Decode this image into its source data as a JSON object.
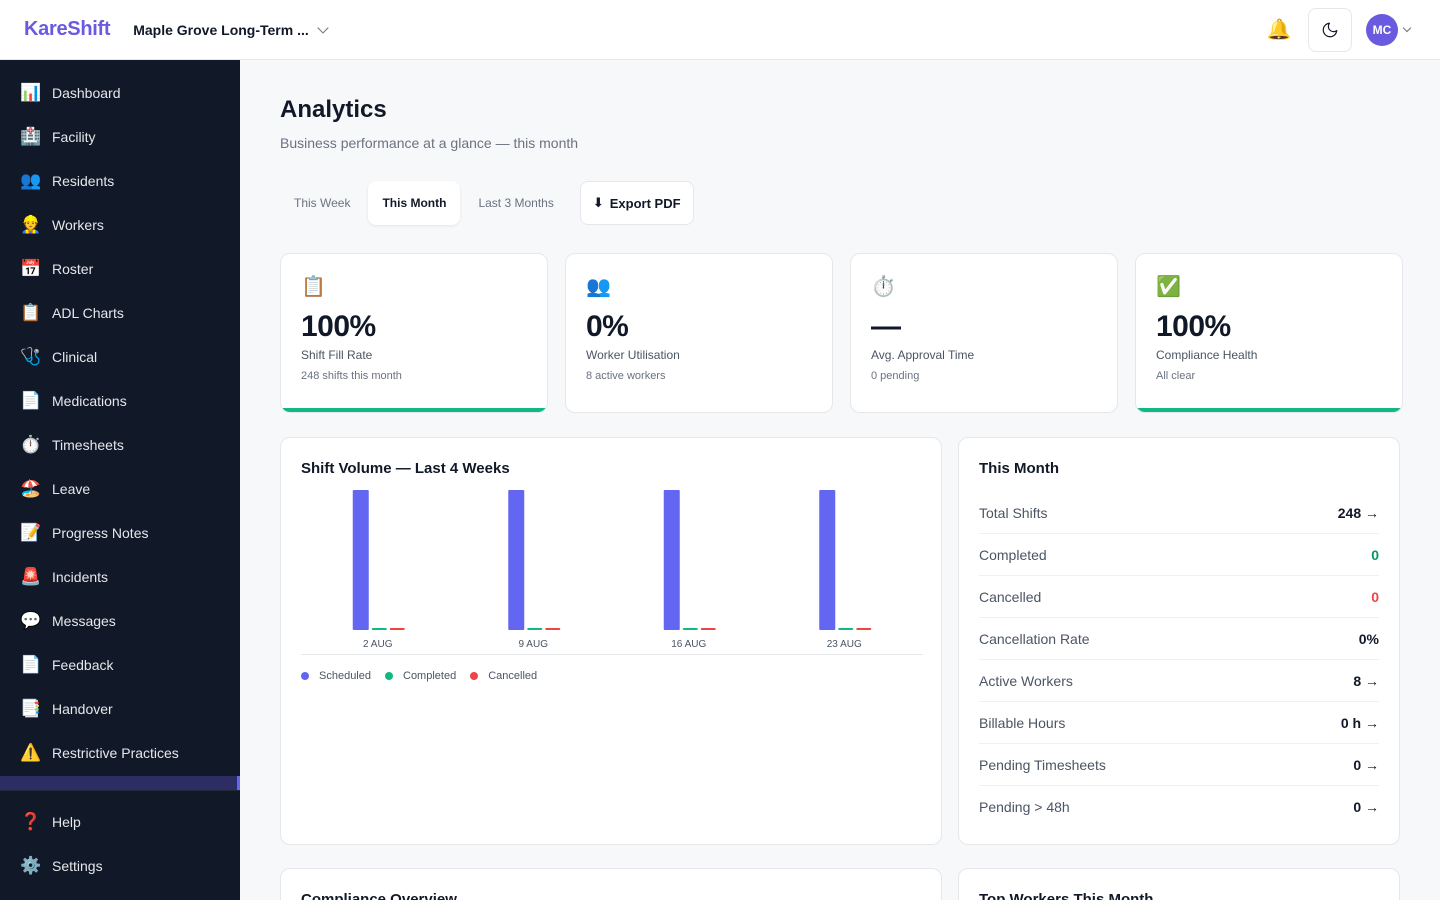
{
  "header": {
    "logo": "KareShift",
    "facility": "Maple Grove Long-Term ...",
    "bell_icon": "🔔",
    "avatar_initials": "MC"
  },
  "sidebar": {
    "items": [
      {
        "icon": "📊",
        "label": "Dashboard"
      },
      {
        "icon": "🏥",
        "label": "Facility"
      },
      {
        "icon": "👥",
        "label": "Residents"
      },
      {
        "icon": "👷",
        "label": "Workers"
      },
      {
        "icon": "📅",
        "label": "Roster"
      },
      {
        "icon": "📋",
        "label": "ADL Charts"
      },
      {
        "icon": "🩺",
        "label": "Clinical"
      },
      {
        "icon": "📄",
        "label": "Medications"
      },
      {
        "icon": "⏱️",
        "label": "Timesheets"
      },
      {
        "icon": "🏖️",
        "label": "Leave"
      },
      {
        "icon": "📝",
        "label": "Progress Notes"
      },
      {
        "icon": "🚨",
        "label": "Incidents"
      },
      {
        "icon": "💬",
        "label": "Messages"
      },
      {
        "icon": "📄",
        "label": "Feedback"
      },
      {
        "icon": "📑",
        "label": "Handover"
      },
      {
        "icon": "⚠️",
        "label": "Restrictive Practices"
      }
    ],
    "bottom": [
      {
        "icon": "❓",
        "label": "Help"
      },
      {
        "icon": "⚙️",
        "label": "Settings"
      }
    ]
  },
  "page": {
    "title": "Analytics",
    "subtitle": "Business performance at a glance — this month"
  },
  "tabs": [
    {
      "label": "This Week",
      "active": false
    },
    {
      "label": "This Month",
      "active": true
    },
    {
      "label": "Last 3 Months",
      "active": false
    }
  ],
  "export_label": "Export PDF",
  "export_icon": "⬇",
  "kpis": [
    {
      "icon": "📋",
      "value": "100%",
      "label": "Shift Fill Rate",
      "sub": "248 shifts this month",
      "bar": 1.0
    },
    {
      "icon": "👥",
      "value": "0%",
      "label": "Worker Utilisation",
      "sub": "8 active workers",
      "bar": 0
    },
    {
      "icon": "⏱️",
      "value": "—",
      "label": "Avg. Approval Time",
      "sub": "0 pending",
      "bar": 0
    },
    {
      "icon": "✅",
      "value": "100%",
      "label": "Compliance Health",
      "sub": "All clear",
      "bar": 1.0
    }
  ],
  "chart_title": "Shift Volume — Last 4 Weeks",
  "chart_data": {
    "type": "bar",
    "categories": [
      "2 AUG",
      "9 AUG",
      "16 AUG",
      "23 AUG"
    ],
    "series": [
      {
        "name": "Scheduled",
        "color": "#6366f1",
        "values": [
          62,
          62,
          62,
          62
        ]
      },
      {
        "name": "Completed",
        "color": "#10b981",
        "values": [
          0,
          0,
          0,
          0
        ]
      },
      {
        "name": "Cancelled",
        "color": "#ef4444",
        "values": [
          0,
          0,
          0,
          0
        ]
      }
    ],
    "ylim": [
      0,
      62
    ],
    "legend": "bottom-left",
    "grid": false
  },
  "month": {
    "title": "This Month",
    "stats": [
      {
        "label": "Total Shifts",
        "value": "248 →",
        "tone": ""
      },
      {
        "label": "Completed",
        "value": "0",
        "tone": "green"
      },
      {
        "label": "Cancelled",
        "value": "0",
        "tone": "red"
      },
      {
        "label": "Cancellation Rate",
        "value": "0%",
        "tone": ""
      },
      {
        "label": "Active Workers",
        "value": "8 →",
        "tone": ""
      },
      {
        "label": "Billable Hours",
        "value": "0 h →",
        "tone": ""
      },
      {
        "label": "Pending Timesheets",
        "value": "0 →",
        "tone": ""
      },
      {
        "label": "Pending > 48h",
        "value": "0 →",
        "tone": ""
      }
    ]
  },
  "bottom_cards": [
    "Compliance Overview",
    "Top Workers This Month"
  ]
}
